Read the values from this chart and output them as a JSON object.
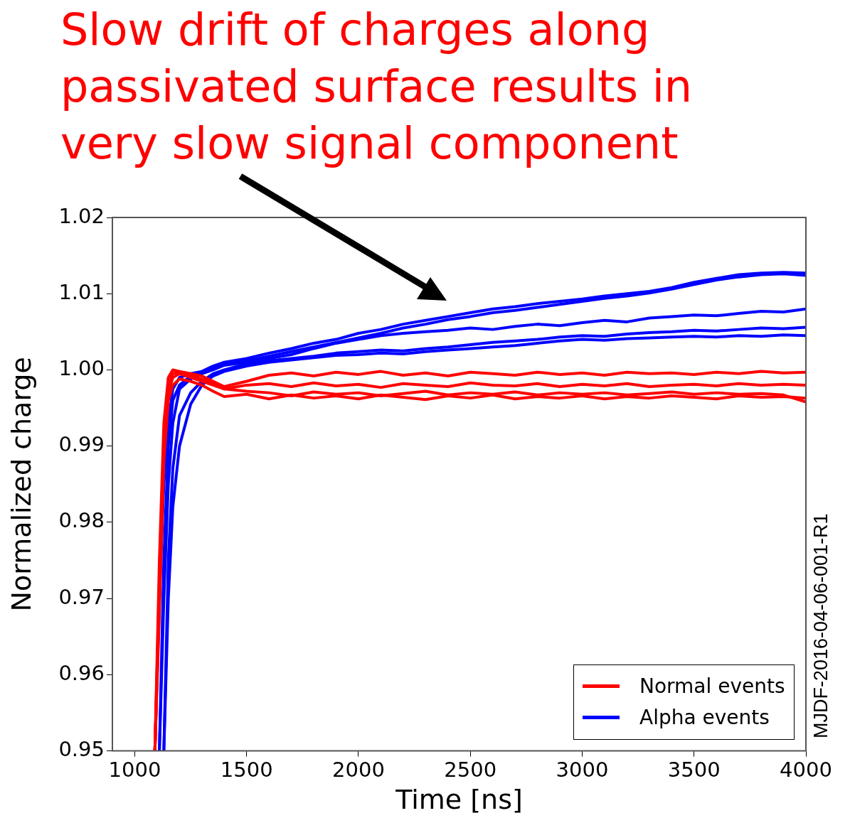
{
  "chart_data": {
    "type": "line",
    "title": "Slow drift of charges along passivated surface results in very slow signal component",
    "xlabel": "Time [ns]",
    "ylabel": "Normalized charge",
    "annotations": [
      "MJDF-2016-04-06-001-R1"
    ],
    "legend": "bottom right",
    "xlim": [
      900,
      4000
    ],
    "xticks": [
      1000,
      1500,
      2000,
      2500,
      3000,
      3500,
      4000
    ],
    "ylim": [
      0.95,
      1.02
    ],
    "yticks": [
      0.95,
      0.96,
      0.97,
      0.98,
      0.99,
      {
        "value": 1,
        "label": "1.00"
      },
      1.01,
      1.02
    ],
    "x": [
      1090,
      1110,
      1130,
      1150,
      1170,
      1200,
      1250,
      1300,
      1350,
      1400,
      1500,
      1600,
      1700,
      1800,
      1900,
      2000,
      2100,
      2200,
      2300,
      2400,
      2500,
      2600,
      2700,
      2800,
      2900,
      3000,
      3100,
      3200,
      3300,
      3400,
      3500,
      3600,
      3700,
      3800,
      3900,
      4000
    ],
    "series": [
      {
        "name": "Normal events",
        "color": "#ff0000",
        "values": [
          0.95,
          0.975,
          0.993,
          0.999,
          1.0,
          0.9998,
          0.9995,
          0.9992,
          0.9985,
          0.9978,
          0.9985,
          0.9993,
          0.9996,
          0.9992,
          0.9997,
          0.9994,
          0.9998,
          0.9993,
          0.9996,
          0.9992,
          0.9997,
          0.9995,
          0.9993,
          0.9997,
          0.9994,
          0.9996,
          0.9993,
          0.9997,
          0.9995,
          0.9996,
          0.9994,
          0.9997,
          0.9995,
          0.9998,
          0.9996,
          0.9997
        ]
      },
      {
        "color": "#ff0000",
        "values": [
          0.95,
          0.97,
          0.99,
          0.997,
          0.999,
          0.9995,
          0.999,
          0.9985,
          0.998,
          0.9975,
          0.998,
          0.9982,
          0.9978,
          0.9983,
          0.9979,
          0.9981,
          0.9977,
          0.9982,
          0.998,
          0.9978,
          0.9983,
          0.998,
          0.9979,
          0.9982,
          0.9978,
          0.9981,
          0.9979,
          0.9982,
          0.9978,
          0.998,
          0.9981,
          0.9979,
          0.9982,
          0.998,
          0.9981,
          0.998
        ]
      },
      {
        "color": "#ff0000",
        "values": [
          0.95,
          0.968,
          0.988,
          0.996,
          0.998,
          0.9988,
          0.9985,
          0.998,
          0.9972,
          0.9965,
          0.9968,
          0.9962,
          0.9967,
          0.9963,
          0.9966,
          0.9962,
          0.9967,
          0.9964,
          0.9961,
          0.9966,
          0.9963,
          0.9967,
          0.9962,
          0.9965,
          0.9963,
          0.9966,
          0.9962,
          0.9965,
          0.9963,
          0.9966,
          0.9964,
          0.9962,
          0.9966,
          0.9964,
          0.9965,
          0.9963
        ]
      },
      {
        "color": "#ff0000",
        "values": [
          0.95,
          0.972,
          0.991,
          0.998,
          0.9995,
          0.9997,
          0.9992,
          0.9988,
          0.9983,
          0.9975,
          0.9972,
          0.997,
          0.9966,
          0.9971,
          0.9968,
          0.997,
          0.9966,
          0.9969,
          0.9972,
          0.9967,
          0.997,
          0.9968,
          0.9971,
          0.9967,
          0.997,
          0.9968,
          0.997,
          0.9967,
          0.9969,
          0.9971,
          0.9968,
          0.997,
          0.9968,
          0.9969,
          0.9967,
          0.9958
        ]
      },
      {
        "name": "Alpha events",
        "color": "#0000ff",
        "values": [
          0.95,
          0.97,
          0.985,
          0.993,
          0.9975,
          0.999,
          0.9995,
          0.9998,
          1.0005,
          1.001,
          1.0015,
          1.0022,
          1.0028,
          1.0035,
          1.004,
          1.0048,
          1.0053,
          1.006,
          1.0065,
          1.007,
          1.0075,
          1.008,
          1.0083,
          1.0087,
          1.009,
          1.0093,
          1.0097,
          1.01,
          1.0103,
          1.0108,
          1.0115,
          1.012,
          1.0125,
          1.0127,
          1.0128,
          1.0127
        ]
      },
      {
        "color": "#0000ff",
        "values": [
          null,
          0.95,
          0.975,
          0.99,
          0.996,
          0.998,
          0.9992,
          0.9997,
          1.0003,
          1.0008,
          1.0012,
          1.0018,
          1.0024,
          1.003,
          1.0036,
          1.0042,
          1.0048,
          1.0055,
          1.006,
          1.0066,
          1.007,
          1.0075,
          1.0078,
          1.0082,
          1.0086,
          1.009,
          1.0094,
          1.0097,
          1.0101,
          1.0106,
          1.0112,
          1.0118,
          1.0122,
          1.0125,
          1.0126,
          1.0124
        ]
      },
      {
        "color": "#0000ff",
        "values": [
          null,
          0.95,
          0.97,
          0.985,
          0.993,
          0.9975,
          0.9988,
          0.9995,
          1.0,
          1.0006,
          1.001,
          1.0015,
          1.002,
          1.0028,
          1.0035,
          1.004,
          1.0045,
          1.0048,
          1.005,
          1.0052,
          1.0055,
          1.0053,
          1.0057,
          1.006,
          1.0058,
          1.0062,
          1.0065,
          1.0063,
          1.0068,
          1.007,
          1.0072,
          1.0071,
          1.0074,
          1.0077,
          1.0076,
          1.008
        ]
      },
      {
        "color": "#0000ff",
        "values": [
          null,
          null,
          0.95,
          0.975,
          0.987,
          0.994,
          0.997,
          0.9985,
          0.9995,
          1.0,
          1.0008,
          1.0012,
          1.0015,
          1.0018,
          1.0022,
          1.0024,
          1.0026,
          1.0025,
          1.0028,
          1.003,
          1.0033,
          1.0036,
          1.0038,
          1.004,
          1.0043,
          1.0045,
          1.0044,
          1.0047,
          1.0049,
          1.005,
          1.0052,
          1.0051,
          1.0053,
          1.0055,
          1.0054,
          1.0056
        ]
      },
      {
        "color": "#0000ff",
        "values": [
          null,
          null,
          0.95,
          0.97,
          0.982,
          0.99,
          0.9955,
          0.998,
          0.9992,
          0.9998,
          1.0005,
          1.001,
          1.0013,
          1.0016,
          1.0019,
          1.002,
          1.0022,
          1.0021,
          1.0024,
          1.0026,
          1.0028,
          1.003,
          1.0032,
          1.0035,
          1.0038,
          1.004,
          1.0039,
          1.0041,
          1.0042,
          1.0043,
          1.0044,
          1.0043,
          1.0045,
          1.0044,
          1.0046,
          1.0045
        ]
      }
    ]
  }
}
